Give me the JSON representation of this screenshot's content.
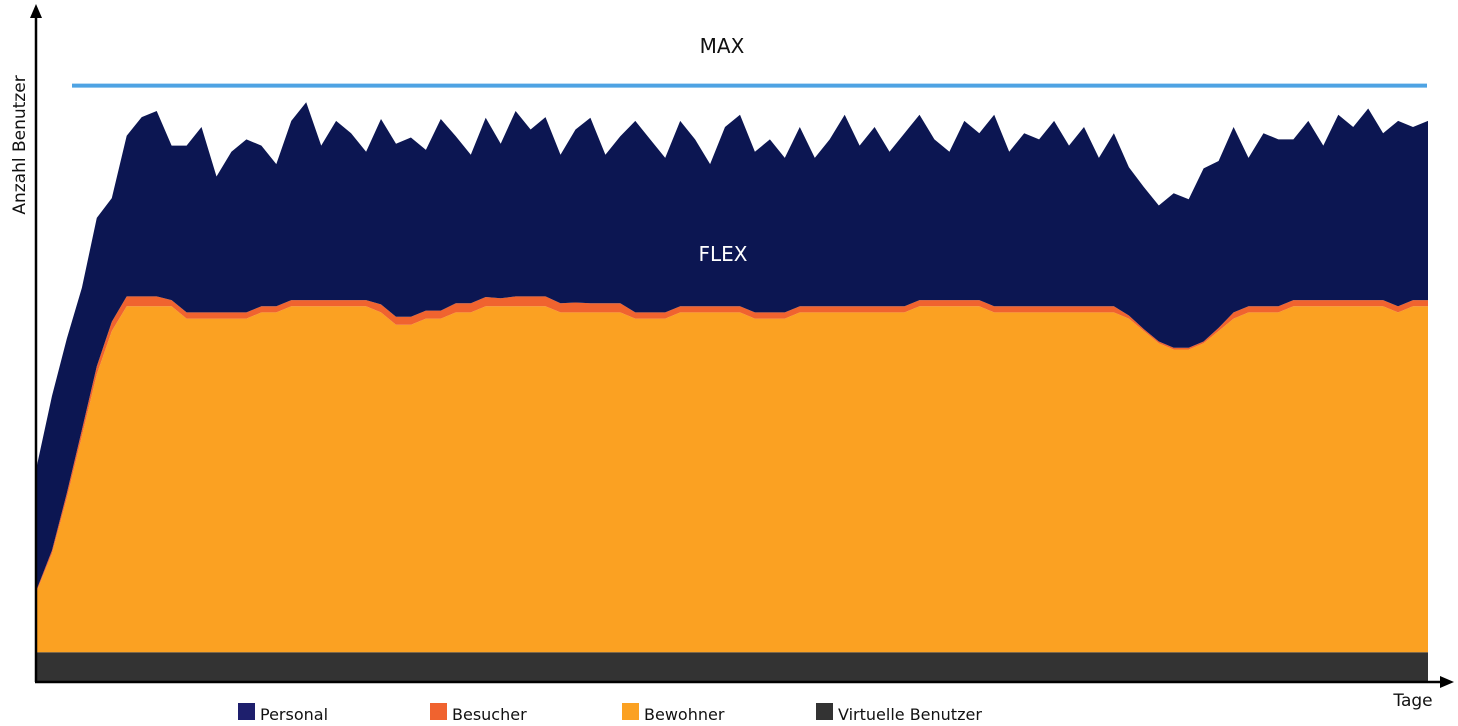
{
  "chart_data": {
    "type": "area",
    "stacked": true,
    "xlabel": "Tage",
    "ylabel": "Anzahl Benutzer",
    "ylim": [
      0,
      100
    ],
    "grid": false,
    "legend_position": "bottom",
    "annotations": {
      "max_label": "MAX",
      "flex_label": "FLEX"
    },
    "max_value": 96.5,
    "series": [
      {
        "name": "Virtuelle Benutzer",
        "color": "#333333",
        "values": [],
        "constant": 4.8
      },
      {
        "name": "Bewohner",
        "color": "#FBA122",
        "values": [
          10,
          16,
          25,
          35,
          45,
          52,
          56,
          56,
          56,
          56,
          54,
          54,
          54,
          54,
          54,
          55,
          55,
          56,
          56,
          56,
          56,
          56,
          56,
          55,
          53,
          53,
          54,
          54,
          55,
          55,
          56,
          56,
          56,
          56,
          56,
          55,
          55,
          55,
          55,
          55,
          54,
          54,
          54,
          55,
          55,
          55,
          55,
          55,
          54,
          54,
          54,
          55,
          55,
          55,
          55,
          55,
          55,
          55,
          55,
          56,
          56,
          56,
          56,
          56,
          55,
          55,
          55,
          55,
          55,
          55,
          55,
          55,
          55,
          54,
          52,
          50,
          49,
          49,
          50,
          52,
          54,
          55,
          55,
          55,
          56,
          56,
          56,
          56,
          56,
          56,
          56,
          55,
          56,
          56
        ]
      },
      {
        "name": "Besucher",
        "color": "#F0632F",
        "values": [
          0.3,
          0.5,
          0.8,
          1,
          1.3,
          1.5,
          1.6,
          1.6,
          1.6,
          1,
          1,
          1,
          1,
          1,
          1,
          1,
          1,
          1,
          1,
          1,
          1,
          1,
          1,
          1.3,
          1.3,
          1.3,
          1.3,
          1.3,
          1.5,
          1.5,
          1.5,
          1.3,
          1.6,
          1.6,
          1.6,
          1.5,
          1.6,
          1.5,
          1.5,
          1.5,
          1,
          1,
          1,
          1,
          1,
          1,
          1,
          1,
          1,
          1,
          1,
          1,
          1,
          1,
          1,
          1,
          1,
          1,
          1,
          1,
          1,
          1,
          1,
          1,
          1,
          1,
          1,
          1,
          1,
          1,
          1,
          1,
          1,
          0.5,
          0.3,
          0.3,
          0.3,
          0.3,
          0.3,
          0.5,
          1,
          1,
          1,
          1,
          1,
          1,
          1,
          1,
          1,
          1,
          1,
          1,
          1,
          1
        ]
      },
      {
        "name": "Personal",
        "color": "#0C1652",
        "values": [
          20,
          25,
          25,
          23,
          24,
          20,
          26,
          29,
          30,
          25,
          27,
          30,
          22,
          26,
          28,
          26,
          23,
          29,
          32,
          25,
          29,
          27,
          24,
          30,
          28,
          29,
          26,
          31,
          27,
          24,
          29,
          25,
          30,
          27,
          29,
          24,
          28,
          30,
          24,
          27,
          31,
          28,
          25,
          30,
          27,
          23,
          29,
          31,
          26,
          28,
          25,
          29,
          24,
          27,
          31,
          26,
          29,
          25,
          28,
          30,
          26,
          24,
          29,
          27,
          31,
          25,
          28,
          27,
          30,
          26,
          29,
          24,
          28,
          24,
          23,
          22,
          25,
          24,
          28,
          27,
          30,
          24,
          28,
          27,
          26,
          29,
          25,
          30,
          28,
          31,
          27,
          30,
          28,
          29
        ]
      }
    ],
    "legend": [
      {
        "name": "Personal",
        "color": "#1E1F6D"
      },
      {
        "name": "Besucher",
        "color": "#F0632F"
      },
      {
        "name": "Bewohner",
        "color": "#FBA122"
      },
      {
        "name": "Virtuelle Benutzer",
        "color": "#333333"
      }
    ],
    "max_line_color": "#4EA3E3"
  }
}
